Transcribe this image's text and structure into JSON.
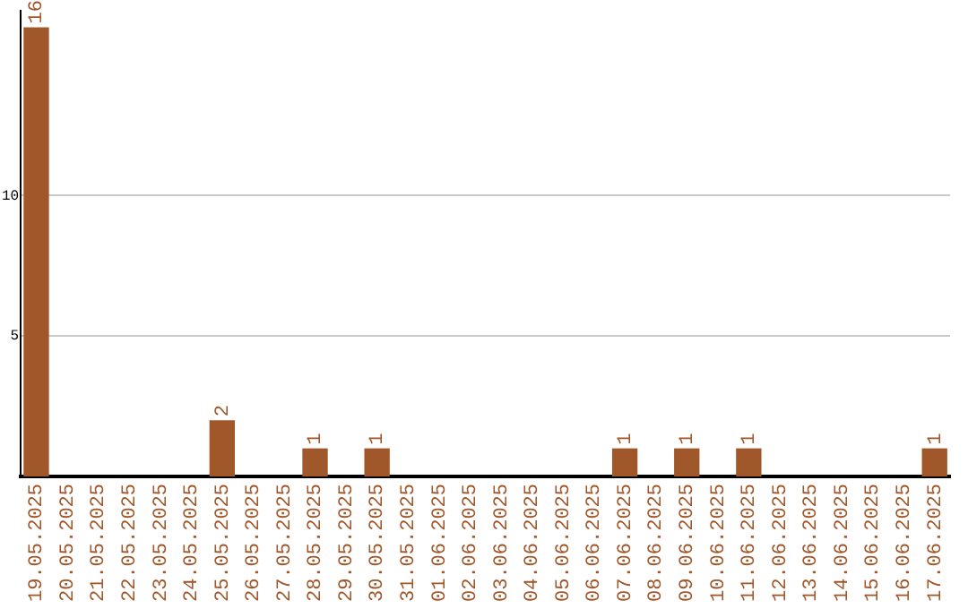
{
  "chart_data": {
    "type": "bar",
    "categories": [
      "19.05.2025",
      "20.05.2025",
      "21.05.2025",
      "22.05.2025",
      "23.05.2025",
      "24.05.2025",
      "25.05.2025",
      "26.05.2025",
      "27.05.2025",
      "28.05.2025",
      "29.05.2025",
      "30.05.2025",
      "31.05.2025",
      "01.06.2025",
      "02.06.2025",
      "03.06.2025",
      "04.06.2025",
      "05.06.2025",
      "06.06.2025",
      "07.06.2025",
      "08.06.2025",
      "09.06.2025",
      "10.06.2025",
      "11.06.2025",
      "12.06.2025",
      "13.06.2025",
      "14.06.2025",
      "15.06.2025",
      "16.06.2025",
      "17.06.2025"
    ],
    "values": [
      16,
      0,
      0,
      0,
      0,
      0,
      2,
      0,
      0,
      1,
      0,
      1,
      0,
      0,
      0,
      0,
      0,
      0,
      0,
      1,
      0,
      1,
      0,
      1,
      0,
      0,
      0,
      0,
      0,
      1
    ],
    "value_labels": [
      "16",
      null,
      null,
      null,
      null,
      null,
      "2",
      null,
      null,
      "1",
      null,
      "1",
      null,
      null,
      null,
      null,
      null,
      null,
      null,
      "1",
      null,
      "1",
      null,
      "1",
      null,
      null,
      null,
      null,
      null,
      "1"
    ],
    "color": "#a0572a",
    "ylim": [
      0,
      16.6
    ],
    "yticks": [
      5,
      10
    ],
    "grid": "y",
    "legend": false
  }
}
